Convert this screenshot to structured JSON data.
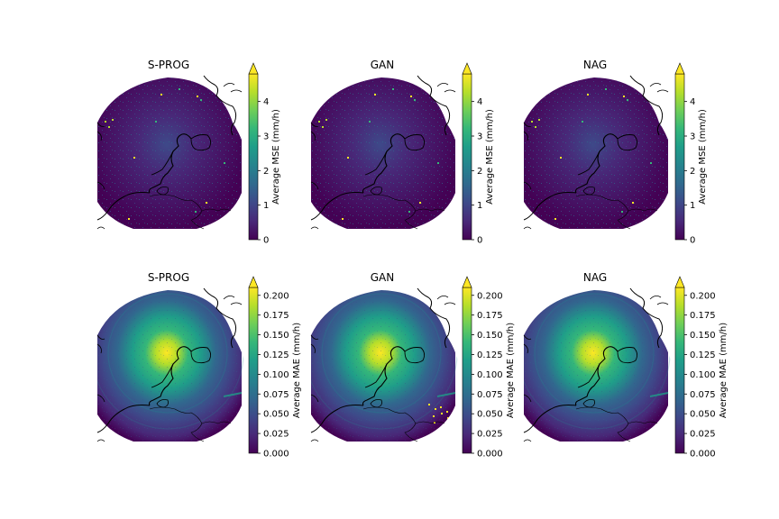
{
  "panels": [
    {
      "title": "S-PROG",
      "metric": "mse",
      "variant": "sprog"
    },
    {
      "title": "GAN",
      "metric": "mse",
      "variant": "gan"
    },
    {
      "title": "NAG",
      "metric": "mse",
      "variant": "nag"
    },
    {
      "title": "S-PROG",
      "metric": "mae",
      "variant": "sprog"
    },
    {
      "title": "GAN",
      "metric": "mae",
      "variant": "gan"
    },
    {
      "title": "NAG",
      "metric": "mae",
      "variant": "nag"
    }
  ],
  "colorbars": {
    "mse": {
      "label": "Average MSE (mm/h)",
      "ticks": [
        "0",
        "1",
        "2",
        "3",
        "4"
      ],
      "values": [
        0,
        1,
        2,
        3,
        4
      ],
      "vmin": 0,
      "vmax": 4.8,
      "extend": "max"
    },
    "mae": {
      "label": "Average MAE (mm/h)",
      "ticks": [
        "0.000",
        "0.025",
        "0.050",
        "0.075",
        "0.100",
        "0.125",
        "0.150",
        "0.175",
        "0.200"
      ],
      "values": [
        0,
        0.025,
        0.05,
        0.075,
        0.1,
        0.125,
        0.15,
        0.175,
        0.2
      ],
      "vmin": 0,
      "vmax": 0.21,
      "extend": "max"
    }
  },
  "colormap": [
    "#440154",
    "#482878",
    "#3e4989",
    "#31688e",
    "#26828e",
    "#1f9e89",
    "#35b779",
    "#6ece58",
    "#b5de2b",
    "#fde725"
  ],
  "colors": {
    "coastline": "#000000",
    "background": "#ffffff"
  }
}
